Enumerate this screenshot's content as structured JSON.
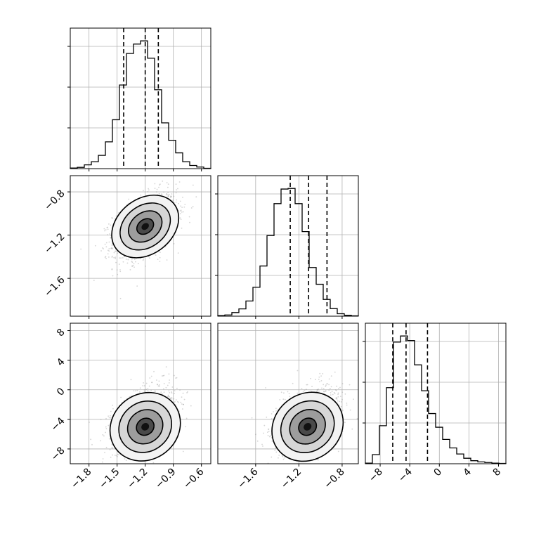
{
  "chart_data": {
    "type": "corner",
    "grid": true,
    "parameters": [
      {
        "ticks": [
          -1.8,
          -1.5,
          -1.2,
          -0.9,
          -0.6
        ],
        "tick_labels": [
          "−1.8",
          "−1.5",
          "−1.2",
          "−0.9",
          "−0.6"
        ],
        "range": [
          -2.0,
          -0.5
        ],
        "quantiles": [
          -1.43,
          -1.2,
          -1.06
        ]
      },
      {
        "ticks": [
          -1.6,
          -1.2,
          -0.8
        ],
        "tick_labels": [
          "−1.6",
          "−1.2",
          "−0.8"
        ],
        "range": [
          -1.95,
          -0.65
        ],
        "quantiles": [
          -1.28,
          -1.11,
          -0.94
        ]
      },
      {
        "ticks": [
          -8,
          -4,
          0,
          4,
          8
        ],
        "tick_labels": [
          "−8",
          "−4",
          "0",
          "4",
          "8"
        ],
        "range": [
          -10,
          9
        ],
        "quantiles": [
          -6.3,
          -4.5,
          -1.6
        ]
      }
    ],
    "histograms": [
      {
        "param": 0,
        "bin_edges": [
          -2.0,
          -1.925,
          -1.85,
          -1.775,
          -1.7,
          -1.625,
          -1.55,
          -1.475,
          -1.4,
          -1.325,
          -1.25,
          -1.175,
          -1.1,
          -1.025,
          -0.95,
          -0.875,
          -0.8,
          -0.725,
          -0.65,
          -0.575,
          -0.5
        ],
        "counts": [
          2,
          4,
          12,
          22,
          42,
          85,
          155,
          265,
          365,
          395,
          405,
          350,
          250,
          145,
          90,
          50,
          22,
          10,
          5,
          1
        ]
      },
      {
        "param": 1,
        "bin_edges": [
          -1.95,
          -1.885,
          -1.82,
          -1.755,
          -1.69,
          -1.625,
          -1.56,
          -1.495,
          -1.43,
          -1.365,
          -1.3,
          -1.235,
          -1.17,
          -1.105,
          -1.04,
          -0.975,
          -0.91,
          -0.845,
          -0.78,
          -0.715,
          -0.65
        ],
        "counts": [
          2,
          4,
          12,
          24,
          50,
          95,
          165,
          265,
          370,
          418,
          420,
          370,
          278,
          160,
          105,
          55,
          25,
          8,
          3,
          1
        ]
      },
      {
        "param": 2,
        "bin_edges": [
          -10.0,
          -9.05,
          -8.1,
          -7.15,
          -6.2,
          -5.25,
          -4.3,
          -3.35,
          -2.4,
          -1.45,
          -0.5,
          0.45,
          1.4,
          2.35,
          3.3,
          4.25,
          5.2,
          6.15,
          7.1,
          8.05,
          9.0
        ],
        "counts": [
          2,
          30,
          125,
          250,
          400,
          420,
          405,
          325,
          240,
          165,
          120,
          80,
          52,
          32,
          18,
          10,
          6,
          4,
          2,
          1
        ]
      }
    ],
    "joint": [
      {
        "x_param": 0,
        "y_param": 1,
        "mean": [
          -1.2,
          -1.12
        ],
        "std": [
          0.17,
          0.15
        ],
        "rho": 0.45
      },
      {
        "x_param": 0,
        "y_param": 2,
        "mean": [
          -1.2,
          -5.0
        ],
        "std": [
          0.17,
          2.6
        ],
        "rho": 0.4,
        "skew": "right"
      },
      {
        "x_param": 1,
        "y_param": 2,
        "mean": [
          -1.12,
          -5.0
        ],
        "std": [
          0.15,
          2.6
        ],
        "rho": 0.4,
        "skew": "right"
      }
    ]
  }
}
